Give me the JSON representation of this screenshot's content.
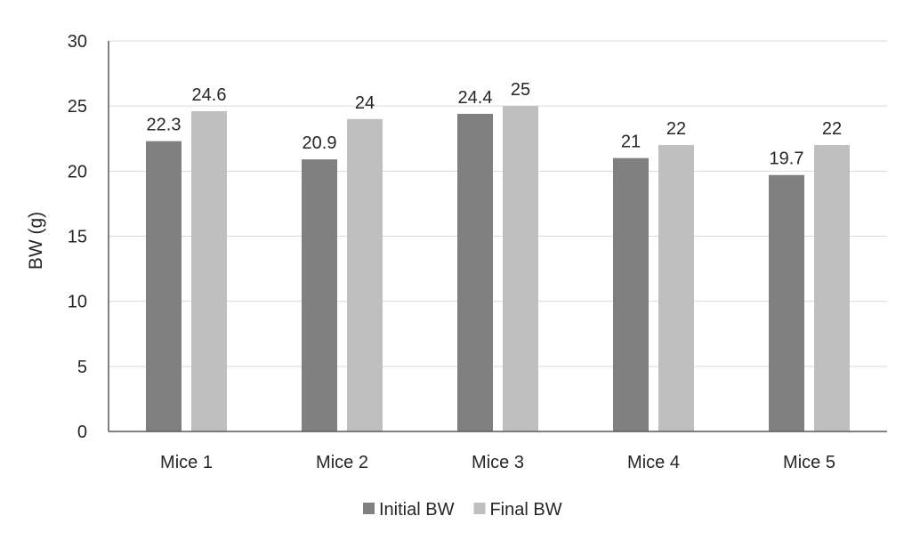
{
  "chart_data": {
    "type": "bar",
    "title": "",
    "xlabel": "",
    "ylabel": "BW (g)",
    "ylim": [
      0,
      30
    ],
    "yticks": [
      0,
      5,
      10,
      15,
      20,
      25,
      30
    ],
    "grid": true,
    "legend_position": "bottom",
    "categories": [
      "Mice 1",
      "Mice 2",
      "Mice 3",
      "Mice 4",
      "Mice 5"
    ],
    "series": [
      {
        "name": "Initial BW",
        "color": "#808080",
        "values": [
          22.3,
          20.9,
          24.4,
          21,
          19.7
        ],
        "labels": [
          "22.3",
          "20.9",
          "24.4",
          "21",
          "19.7"
        ]
      },
      {
        "name": "Final BW",
        "color": "#bfbfbf",
        "values": [
          24.6,
          24,
          25,
          22,
          22
        ],
        "labels": [
          "24.6",
          "24",
          "25",
          "22",
          "22"
        ]
      }
    ]
  }
}
